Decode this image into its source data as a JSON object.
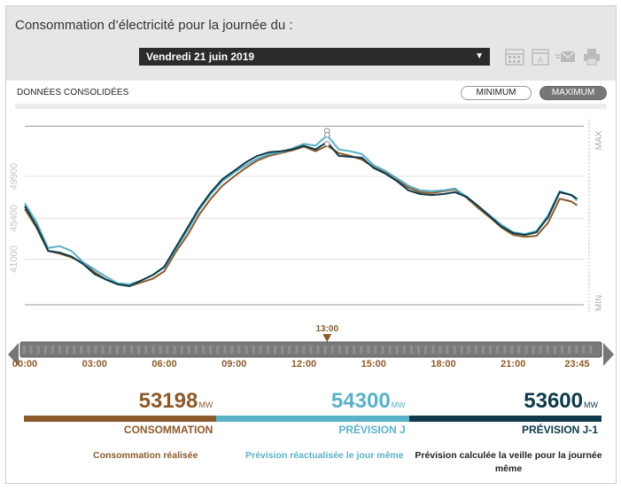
{
  "header": {
    "title": "Consommation d’électricité pour la journée du :",
    "date_value": "Vendredi 21 juin 2019"
  },
  "toolbar": {
    "icons": [
      "calendar-icon",
      "calendar-a-icon",
      "email-icon",
      "print-icon"
    ]
  },
  "subbar": {
    "label": "DONNÉES CONSOLIDÉES",
    "min_label": "MINIMUM",
    "max_label": "MAXIMUM"
  },
  "time_marker": "13:00",
  "colors": {
    "consommation": "#8b5a2b",
    "prevision_j": "#5bb1c8",
    "prevision_j1": "#0e3a4a"
  },
  "legend": {
    "cons_value": "53198",
    "cons_unit": "MW",
    "cons_label": "CONSOMMATION",
    "cons_desc": "Consommation réalisée",
    "pj_value": "54300",
    "pj_unit": "MW",
    "pj_label": "PRÉVISION J",
    "pj_desc": "Prévision réactualisée le jour même",
    "pj1_value": "53600",
    "pj1_unit": "MW",
    "pj1_label": "PRÉVISION J-1",
    "pj1_desc": "Prévision calculée la veille pour la journée même"
  },
  "chart_data": {
    "type": "line",
    "ylim": [
      36000,
      56000
    ],
    "ytick_labels": [
      "41000",
      "45400",
      "49900"
    ],
    "ytick_values": [
      41000,
      45400,
      49900
    ],
    "xlim": [
      0,
      24
    ],
    "xtick_labels": [
      "00:00",
      "03:00",
      "06:00",
      "09:00",
      "12:00",
      "15:00",
      "18:00",
      "21:00",
      "23:45"
    ],
    "xtick_values": [
      0,
      3,
      6,
      9,
      12,
      15,
      18,
      21,
      23.75
    ],
    "max_label": "MAX",
    "min_label": "MIN",
    "max_value": 55300,
    "min_value": 36100,
    "series": [
      {
        "name": "CONSOMMATION",
        "color": "#8b5a2b",
        "points": [
          [
            0,
            46400
          ],
          [
            0.5,
            44400
          ],
          [
            1,
            41900
          ],
          [
            1.5,
            41600
          ],
          [
            2,
            41200
          ],
          [
            2.5,
            40600
          ],
          [
            3,
            39600
          ],
          [
            3.5,
            38800
          ],
          [
            4,
            38300
          ],
          [
            4.5,
            38100
          ],
          [
            5,
            38500
          ],
          [
            5.5,
            38900
          ],
          [
            6,
            39700
          ],
          [
            6.5,
            41800
          ],
          [
            7,
            43600
          ],
          [
            7.5,
            45800
          ],
          [
            8,
            47500
          ],
          [
            8.5,
            48900
          ],
          [
            9,
            49900
          ],
          [
            9.5,
            50800
          ],
          [
            10,
            51600
          ],
          [
            10.5,
            52100
          ],
          [
            11,
            52400
          ],
          [
            11.5,
            52700
          ],
          [
            12,
            53100
          ],
          [
            12.5,
            52600
          ],
          [
            13,
            53198
          ],
          [
            13.5,
            52400
          ],
          [
            14,
            52100
          ],
          [
            14.5,
            51700
          ],
          [
            15,
            50900
          ],
          [
            15.5,
            50300
          ],
          [
            16,
            49500
          ],
          [
            16.5,
            48700
          ],
          [
            17,
            48200
          ],
          [
            17.5,
            48100
          ],
          [
            18,
            48300
          ],
          [
            18.5,
            48500
          ],
          [
            19,
            47600
          ],
          [
            19.5,
            46500
          ],
          [
            20,
            45500
          ],
          [
            20.5,
            44400
          ],
          [
            21,
            43600
          ],
          [
            21.5,
            43400
          ],
          [
            22,
            43500
          ],
          [
            22.5,
            44900
          ],
          [
            23,
            47500
          ],
          [
            23.5,
            47200
          ],
          [
            23.75,
            46800
          ]
        ]
      },
      {
        "name": "PRÉVISION J",
        "color": "#5bb1c8",
        "points": [
          [
            0,
            47000
          ],
          [
            0.5,
            45000
          ],
          [
            1,
            42200
          ],
          [
            1.5,
            42400
          ],
          [
            2,
            41900
          ],
          [
            2.5,
            40700
          ],
          [
            3,
            39900
          ],
          [
            3.5,
            39100
          ],
          [
            4,
            38400
          ],
          [
            4.5,
            38300
          ],
          [
            5,
            38700
          ],
          [
            5.5,
            39300
          ],
          [
            6,
            40100
          ],
          [
            6.5,
            42100
          ],
          [
            7,
            44100
          ],
          [
            7.5,
            46300
          ],
          [
            8,
            48000
          ],
          [
            8.5,
            49400
          ],
          [
            9,
            50300
          ],
          [
            9.5,
            51100
          ],
          [
            10,
            51800
          ],
          [
            10.5,
            52300
          ],
          [
            11,
            52500
          ],
          [
            11.5,
            52900
          ],
          [
            12,
            53400
          ],
          [
            12.5,
            53200
          ],
          [
            13,
            54300
          ],
          [
            13.5,
            52800
          ],
          [
            14,
            52600
          ],
          [
            14.5,
            52300
          ],
          [
            15,
            51100
          ],
          [
            15.5,
            50500
          ],
          [
            16,
            49700
          ],
          [
            16.5,
            48900
          ],
          [
            17,
            48400
          ],
          [
            17.5,
            48300
          ],
          [
            18,
            48400
          ],
          [
            18.5,
            48600
          ],
          [
            19,
            47700
          ],
          [
            19.5,
            46700
          ],
          [
            20,
            45700
          ],
          [
            20.5,
            44700
          ],
          [
            21,
            43900
          ],
          [
            21.5,
            43700
          ],
          [
            22,
            44000
          ],
          [
            22.5,
            45700
          ],
          [
            23,
            48300
          ],
          [
            23.5,
            47900
          ],
          [
            23.75,
            47300
          ]
        ]
      },
      {
        "name": "PRÉVISION J-1",
        "color": "#0e3a4a",
        "points": [
          [
            0,
            46700
          ],
          [
            0.5,
            44600
          ],
          [
            1,
            41900
          ],
          [
            1.5,
            41700
          ],
          [
            2,
            41300
          ],
          [
            2.5,
            40500
          ],
          [
            3,
            39400
          ],
          [
            3.5,
            38800
          ],
          [
            4,
            38300
          ],
          [
            4.5,
            38100
          ],
          [
            5,
            38700
          ],
          [
            5.5,
            39300
          ],
          [
            6,
            40200
          ],
          [
            6.5,
            42300
          ],
          [
            7,
            44400
          ],
          [
            7.5,
            46500
          ],
          [
            8,
            48200
          ],
          [
            8.5,
            49600
          ],
          [
            9,
            50500
          ],
          [
            9.5,
            51400
          ],
          [
            10,
            52100
          ],
          [
            10.5,
            52500
          ],
          [
            11,
            52600
          ],
          [
            11.5,
            52800
          ],
          [
            12,
            53200
          ],
          [
            12.5,
            52800
          ],
          [
            13,
            53600
          ],
          [
            13.5,
            52100
          ],
          [
            14,
            52000
          ],
          [
            14.5,
            51900
          ],
          [
            15,
            50800
          ],
          [
            15.5,
            50200
          ],
          [
            16,
            49400
          ],
          [
            16.5,
            48400
          ],
          [
            17,
            48000
          ],
          [
            17.5,
            47900
          ],
          [
            18,
            48000
          ],
          [
            18.5,
            48200
          ],
          [
            19,
            47700
          ],
          [
            19.5,
            46700
          ],
          [
            20,
            45600
          ],
          [
            20.5,
            44500
          ],
          [
            21,
            43800
          ],
          [
            21.5,
            43600
          ],
          [
            22,
            43900
          ],
          [
            22.5,
            45500
          ],
          [
            23,
            48200
          ],
          [
            23.5,
            47900
          ],
          [
            23.75,
            47500
          ]
        ]
      }
    ]
  }
}
